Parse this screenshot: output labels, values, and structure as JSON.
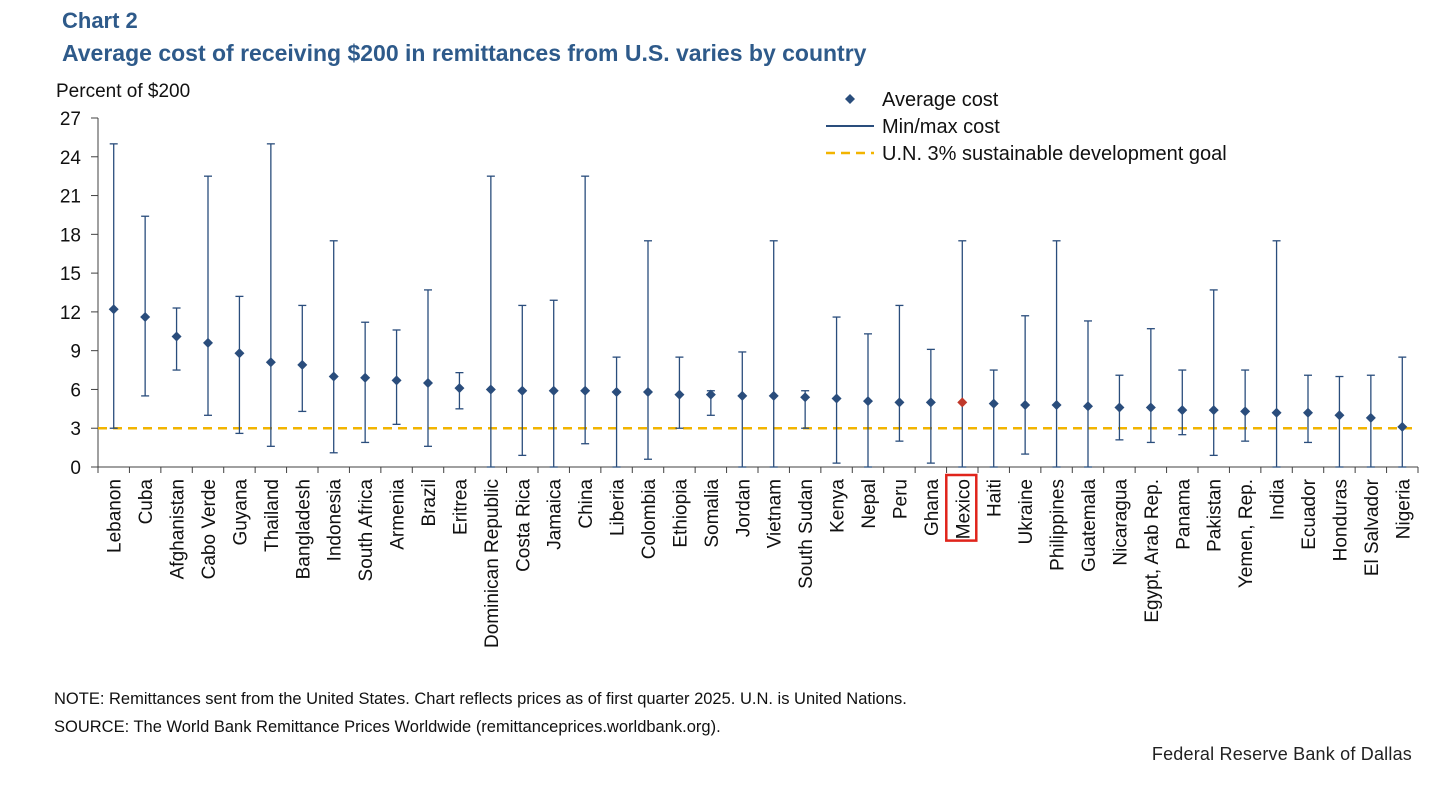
{
  "header": {
    "chart_number": "Chart 2",
    "title": "Average cost of receiving $200 in remittances from U.S. varies by country"
  },
  "chart_data": {
    "type": "scatter",
    "title": "Average cost of receiving $200 in remittances from U.S. varies by country",
    "ylabel": "Percent of $200",
    "xlabel": "",
    "ylim": [
      0,
      27
    ],
    "yticks": [
      0,
      3,
      6,
      9,
      12,
      15,
      18,
      21,
      24,
      27
    ],
    "grid": false,
    "legend_position": "top-right",
    "legend": {
      "average": "Average cost",
      "minmax": "Min/max cost",
      "goal": "U.N. 3% sustainable development goal"
    },
    "goal_value": 3,
    "highlight": "Mexico",
    "colors": {
      "series": "#2a4d7c",
      "highlight_point": "#c0392b",
      "goal_line": "#f2b400",
      "highlight_box": "#e0241b",
      "axis": "#404040"
    },
    "categories": [
      "Lebanon",
      "Cuba",
      "Afghanistan",
      "Cabo Verde",
      "Guyana",
      "Thailand",
      "Bangladesh",
      "Indonesia",
      "South Africa",
      "Armenia",
      "Brazil",
      "Eritrea",
      "Dominican Republic",
      "Costa Rica",
      "Jamaica",
      "China",
      "Liberia",
      "Colombia",
      "Ethiopia",
      "Somalia",
      "Jordan",
      "Vietnam",
      "South Sudan",
      "Kenya",
      "Nepal",
      "Peru",
      "Ghana",
      "Mexico",
      "Haiti",
      "Ukraine",
      "Philippines",
      "Guatemala",
      "Nicaragua",
      "Egypt, Arab Rep.",
      "Panama",
      "Pakistan",
      "Yemen, Rep.",
      "India",
      "Ecuador",
      "Honduras",
      "El Salvador",
      "Nigeria"
    ],
    "series": [
      {
        "name": "Average cost",
        "values": [
          12.2,
          11.6,
          10.1,
          9.6,
          8.8,
          8.1,
          7.9,
          7.0,
          6.9,
          6.7,
          6.5,
          6.1,
          6.0,
          5.9,
          5.9,
          5.9,
          5.8,
          5.8,
          5.6,
          5.6,
          5.5,
          5.5,
          5.4,
          5.3,
          5.1,
          5.0,
          5.0,
          5.0,
          4.9,
          4.8,
          4.8,
          4.7,
          4.6,
          4.6,
          4.4,
          4.4,
          4.3,
          4.2,
          4.2,
          4.0,
          3.8,
          3.1
        ]
      },
      {
        "name": "Min cost",
        "values": [
          3.0,
          5.5,
          7.5,
          4.0,
          2.6,
          1.6,
          4.3,
          1.1,
          1.9,
          3.3,
          1.6,
          4.5,
          0.0,
          0.9,
          0.0,
          1.8,
          0.0,
          0.6,
          3.0,
          4.0,
          0.0,
          0.0,
          3.0,
          0.3,
          0.0,
          2.0,
          0.3,
          0.0,
          0.0,
          1.0,
          0.0,
          0.0,
          2.1,
          1.9,
          2.5,
          0.9,
          2.0,
          0.0,
          1.9,
          0.0,
          0.0,
          0.0
        ]
      },
      {
        "name": "Max cost",
        "values": [
          25.0,
          19.4,
          12.3,
          22.5,
          13.2,
          25.0,
          12.5,
          17.5,
          11.2,
          10.6,
          13.7,
          7.3,
          22.5,
          12.5,
          12.9,
          22.5,
          8.5,
          17.5,
          8.5,
          5.9,
          8.9,
          17.5,
          5.9,
          11.6,
          10.3,
          12.5,
          9.1,
          17.5,
          7.5,
          11.7,
          17.5,
          11.3,
          7.1,
          10.7,
          7.5,
          13.7,
          7.5,
          17.5,
          7.1,
          7.0,
          7.1,
          8.5
        ]
      }
    ]
  },
  "footer": {
    "note": "NOTE:  Remittances  sent from the United States. Chart reflects prices as of first quarter 2025. U.N.  is United  Nations.",
    "source": "SOURCE:  The World Bank Remittance  Prices  Worldwide  (remittanceprices.worldbank.org).",
    "credit": "Federal  Reserve  Bank of Dallas"
  }
}
